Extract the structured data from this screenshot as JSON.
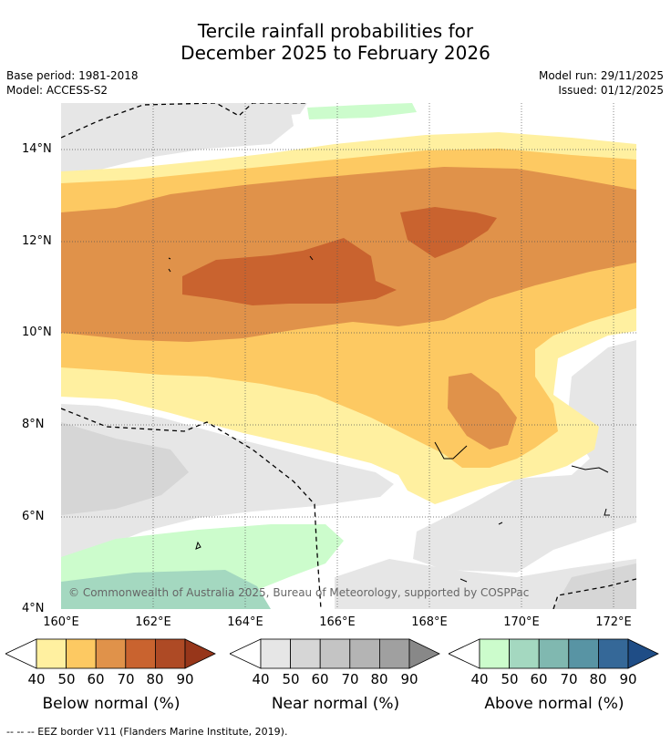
{
  "title_line1": "Tercile rainfall probabilities for",
  "title_line2": "December 2025 to February 2026",
  "base_period": "Base period: 1981-2018",
  "model": "Model: ACCESS-S2",
  "model_run": "Model run: 29/11/2025",
  "issued": "Issued: 01/12/2025",
  "copyright": "© Commonwealth of Australia 2025, Bureau of Meteorology, supported by COSPPac",
  "footnote": "--  --  -- EEZ border V11 (Flanders Marine Institute, 2019).",
  "map": {
    "lon_range": [
      160,
      172.5
    ],
    "lat_range": [
      4,
      15
    ],
    "lat_ticks": [
      {
        "value": 14,
        "label": "14°N"
      },
      {
        "value": 12,
        "label": "12°N"
      },
      {
        "value": 10,
        "label": "10°N"
      },
      {
        "value": 8,
        "label": "8°N"
      },
      {
        "value": 6,
        "label": "6°N"
      },
      {
        "value": 4,
        "label": "4°N"
      }
    ],
    "lon_ticks": [
      {
        "value": 160,
        "label": "160°E"
      },
      {
        "value": 162,
        "label": "162°E"
      },
      {
        "value": 164,
        "label": "164°E"
      },
      {
        "value": 166,
        "label": "166°E"
      },
      {
        "value": 168,
        "label": "168°E"
      },
      {
        "value": 170,
        "label": "170°E"
      },
      {
        "value": 172,
        "label": "172°E"
      }
    ]
  },
  "colorbars": [
    {
      "title": "Below normal (%)",
      "ticks": [
        "40",
        "50",
        "60",
        "70",
        "80",
        "90"
      ],
      "colors": [
        "#fff0a0",
        "#fdc962",
        "#e0924a",
        "#c9632f",
        "#ae4a25"
      ],
      "over": "#97361a"
    },
    {
      "title": "Near normal (%)",
      "ticks": [
        "40",
        "50",
        "60",
        "70",
        "80",
        "90"
      ],
      "colors": [
        "#e6e6e6",
        "#d6d6d6",
        "#c4c4c4",
        "#b4b4b4",
        "#a0a0a0"
      ],
      "over": "#888888"
    },
    {
      "title": "Above normal (%)",
      "ticks": [
        "40",
        "50",
        "60",
        "70",
        "80",
        "90"
      ],
      "colors": [
        "#ccfccc",
        "#a4d8c0",
        "#80b8b0",
        "#5894a4",
        "#356898"
      ],
      "over": "#1f4d86"
    }
  ],
  "colors": {
    "below_40": "#fff0a0",
    "below_50": "#fdc962",
    "below_60": "#e0924a",
    "below_70": "#c9632f",
    "near_40": "#e6e6e6",
    "near_50": "#d6d6d6",
    "above_40": "#ccfccc",
    "above_50": "#a4d8c0"
  }
}
